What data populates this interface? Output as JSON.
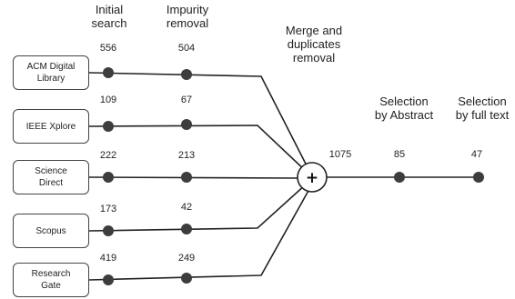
{
  "headers": {
    "initial_search": "Initial\nsearch",
    "impurity_removal": "Impurity\nremoval",
    "merge": "Merge and\nduplicates\nremoval",
    "selection_abstract": "Selection\nby Abstract",
    "selection_fulltext": "Selection\nby full text"
  },
  "sources": [
    {
      "label": "ACM Digital\nLibrary",
      "initial": "556",
      "impurity": "504"
    },
    {
      "label": "IEEE Xplore",
      "initial": "109",
      "impurity": "67"
    },
    {
      "label": "Science\nDirect",
      "initial": "222",
      "impurity": "213"
    },
    {
      "label": "Scopus",
      "initial": "173",
      "impurity": "42"
    },
    {
      "label": "Research\nGate",
      "initial": "419",
      "impurity": "249"
    }
  ],
  "merge_symbol": "+",
  "merged_count": "1075",
  "abstract_count": "85",
  "fulltext_count": "47"
}
